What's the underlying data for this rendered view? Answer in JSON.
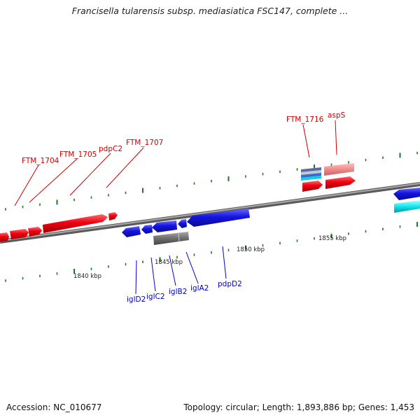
{
  "title": "Francisella tularensis subsp. mediasiatica FSC147, complete ...",
  "footer": {
    "accession": "Accession: NC_010677",
    "summary": "Topology: circular; Length: 1,893,886 bp; Genes: 1,453"
  },
  "scale_labels": [
    "1840 kbp",
    "1845 kbp",
    "1850 kbp",
    "1855 kbp"
  ],
  "gene_labels": {
    "top": [
      "FTM_1704",
      "FTM_1705",
      "pdpC2",
      "FTM_1707",
      "FTM_1716",
      "aspS"
    ],
    "bottom": [
      "iglD2",
      "iglC2",
      "iglB2",
      "iglA2",
      "pdpD2"
    ]
  },
  "colors": {
    "forward_gene": "#e8000b",
    "reverse_gene": "#1a1ad8",
    "pseudo_gene": "#707070",
    "rna_gene": "#00d8e0",
    "pink_gene": "#f08a8a",
    "backbone": "#888888",
    "tick": "#1f7a1f",
    "top_label": "#cc0000",
    "bottom_label": "#0000cc"
  }
}
